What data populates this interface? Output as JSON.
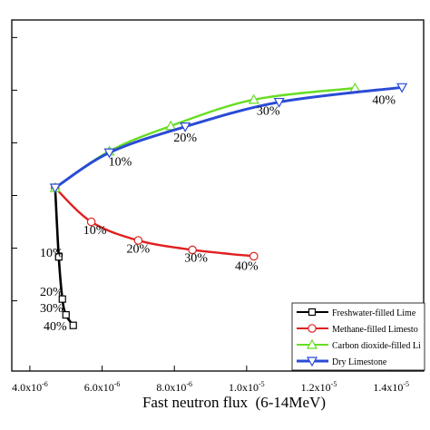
{
  "chart_data": {
    "type": "line",
    "title": "",
    "xlabel": "Fast neutron flux  (6-14MeV)",
    "ylabel": "",
    "xlim": [
      3.5e-06,
      1.49e-05
    ],
    "ylim": [
      0,
      1
    ],
    "x_ticks": [
      {
        "value": 4e-06,
        "label": "4.0x10",
        "exp": "-6"
      },
      {
        "value": 6e-06,
        "label": "6.0x10",
        "exp": "-6"
      },
      {
        "value": 8e-06,
        "label": "8.0x10",
        "exp": "-6"
      },
      {
        "value": 1e-05,
        "label": "1.0x10",
        "exp": "-5"
      },
      {
        "value": 1.2e-05,
        "label": "1.2x10",
        "exp": "-5"
      },
      {
        "value": 1.4e-05,
        "label": "1.4x10",
        "exp": "-5"
      }
    ],
    "y_tick_values": [
      0.2,
      0.35,
      0.5,
      0.65,
      0.8,
      0.95
    ],
    "grid": false,
    "legend_position": "bottom-right",
    "series": [
      {
        "name": "Freshwater-filled Lime",
        "color": "#000000",
        "marker": "square",
        "points": [
          [
            4.7e-06,
            0.522
          ],
          [
            4.8e-06,
            0.325
          ],
          [
            4.9e-06,
            0.205
          ],
          [
            5e-06,
            0.16
          ],
          [
            5.2e-06,
            0.13
          ]
        ],
        "labels": [
          {
            "text": "10%",
            "x": 4.6e-06,
            "y": 0.325
          },
          {
            "text": "20%",
            "x": 4.6e-06,
            "y": 0.214
          },
          {
            "text": "30%",
            "x": 4.6e-06,
            "y": 0.168
          },
          {
            "text": "40%",
            "x": 4.7e-06,
            "y": 0.116
          }
        ]
      },
      {
        "name": "Methane-filled Limesto",
        "color": "#e02020",
        "marker": "circle",
        "points": [
          [
            4.7e-06,
            0.522
          ],
          [
            5.7e-06,
            0.425
          ],
          [
            7e-06,
            0.372
          ],
          [
            8.5e-06,
            0.345
          ],
          [
            1.02e-05,
            0.327
          ]
        ],
        "labels": [
          {
            "text": "10%",
            "x": 5.8e-06,
            "y": 0.39
          },
          {
            "text": "20%",
            "x": 7e-06,
            "y": 0.337
          },
          {
            "text": "30%",
            "x": 8.6e-06,
            "y": 0.312
          },
          {
            "text": "40%",
            "x": 1e-05,
            "y": 0.288
          }
        ]
      },
      {
        "name": "Carbon dioxide-filled Li",
        "color": "#66dd22",
        "marker": "triangle-up",
        "points": [
          [
            4.7e-06,
            0.522
          ],
          [
            6.2e-06,
            0.626
          ],
          [
            7.9e-06,
            0.698
          ],
          [
            1.02e-05,
            0.773
          ],
          [
            1.3e-05,
            0.806
          ]
        ],
        "labels": []
      },
      {
        "name": "Dry Limestone",
        "color": "#2a4bd6",
        "marker": "triangle-down",
        "points": [
          [
            4.7e-06,
            0.522
          ],
          [
            6.2e-06,
            0.622
          ],
          [
            8.3e-06,
            0.696
          ],
          [
            1.09e-05,
            0.766
          ],
          [
            1.43e-05,
            0.808
          ]
        ],
        "labels": [
          {
            "text": "10%",
            "x": 6.5e-06,
            "y": 0.585
          },
          {
            "text": "20%",
            "x": 8.3e-06,
            "y": 0.654
          },
          {
            "text": "30%",
            "x": 1.06e-05,
            "y": 0.73
          },
          {
            "text": "40%",
            "x": 1.38e-05,
            "y": 0.761
          }
        ]
      }
    ]
  }
}
